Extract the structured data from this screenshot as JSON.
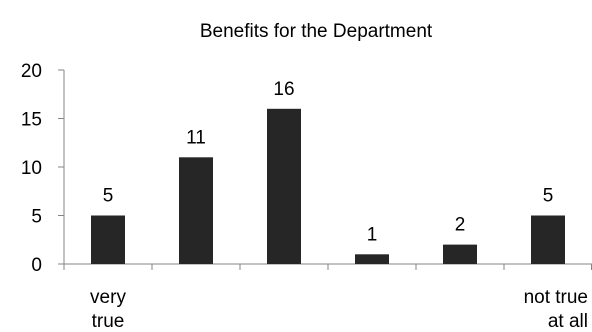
{
  "chart_data": {
    "type": "bar",
    "title": "Benefits for the Department",
    "categories": [
      [
        "very",
        "true"
      ],
      [],
      [],
      [],
      [],
      [
        "not true",
        "at all"
      ]
    ],
    "values": [
      5,
      11,
      16,
      1,
      2,
      5
    ],
    "data_labels": [
      "5",
      "11",
      "16",
      "1",
      "2",
      "5"
    ],
    "ylim": [
      0,
      20
    ],
    "yticks": [
      0,
      5,
      10,
      15,
      20
    ],
    "grid": false,
    "legend": "none",
    "bar_color": "#262626",
    "axis_color": "#868686"
  }
}
